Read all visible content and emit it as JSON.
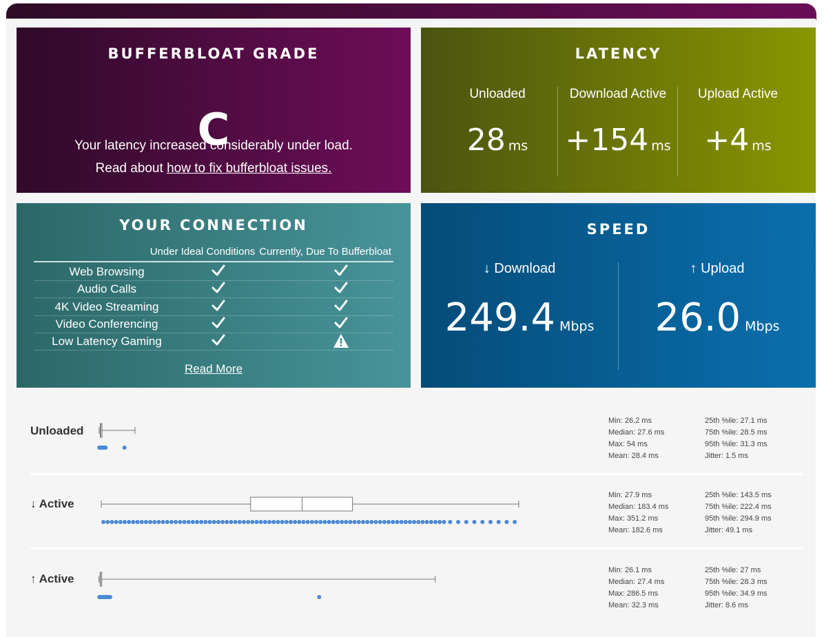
{
  "grade": {
    "title": "BUFFERBLOAT GRADE",
    "letter": "C",
    "message": "Your latency increased considerably under load.",
    "read_prefix": "Read about",
    "read_link": "how to fix bufferbloat issues."
  },
  "latency": {
    "title": "LATENCY",
    "columns": [
      {
        "label": "Unloaded",
        "value": "28",
        "unit": "ms"
      },
      {
        "label": "Download Active",
        "value": "+154",
        "unit": "ms"
      },
      {
        "label": "Upload Active",
        "value": "+4",
        "unit": "ms"
      }
    ]
  },
  "connection": {
    "title": "YOUR CONNECTION",
    "col_ideal": "Under Ideal Conditions",
    "col_current": "Currently, Due To Bufferbloat",
    "rows": [
      {
        "name": "Web Browsing",
        "ideal": "check",
        "current": "check"
      },
      {
        "name": "Audio Calls",
        "ideal": "check",
        "current": "check"
      },
      {
        "name": "4K Video Streaming",
        "ideal": "check",
        "current": "check"
      },
      {
        "name": "Video Conferencing",
        "ideal": "check",
        "current": "check"
      },
      {
        "name": "Low Latency Gaming",
        "ideal": "check",
        "current": "warning"
      }
    ],
    "read_more": "Read More"
  },
  "speed": {
    "title": "SPEED",
    "download": {
      "label": "↓ Download",
      "value": "249.4",
      "unit": "Mbps"
    },
    "upload": {
      "label": "↑ Upload",
      "value": "26.0",
      "unit": "Mbps"
    }
  },
  "colors": {
    "dot": "#4a8ad4",
    "box": "#777777"
  },
  "stats": [
    {
      "label": "Unloaded",
      "left": [
        "Min: 26.2 ms",
        "Median: 27.6 ms",
        "Max: 54 ms",
        "Mean: 28.4 ms"
      ],
      "right": [
        "25th %ile: 27.1 ms",
        "75th %ile: 28.5 ms",
        "95th %ile: 31.3 ms",
        "Jitter: 1.5 ms"
      ]
    },
    {
      "label": "↓ Active",
      "left": [
        "Min: 27.9 ms",
        "Median: 183.4 ms",
        "Max: 351.2 ms",
        "Mean: 182.6 ms"
      ],
      "right": [
        "25th %ile: 143.5 ms",
        "75th %ile: 222.4 ms",
        "95th %ile: 294.9 ms",
        "Jitter: 49.1 ms"
      ]
    },
    {
      "label": "↑ Active",
      "left": [
        "Min: 26.1 ms",
        "Median: 27.4 ms",
        "Max: 286.5 ms",
        "Mean: 32.3 ms"
      ],
      "right": [
        "25th %ile: 27 ms",
        "75th %ile: 28.3 ms",
        "95th %ile: 34.9 ms",
        "Jitter: 8.6 ms"
      ]
    }
  ]
}
